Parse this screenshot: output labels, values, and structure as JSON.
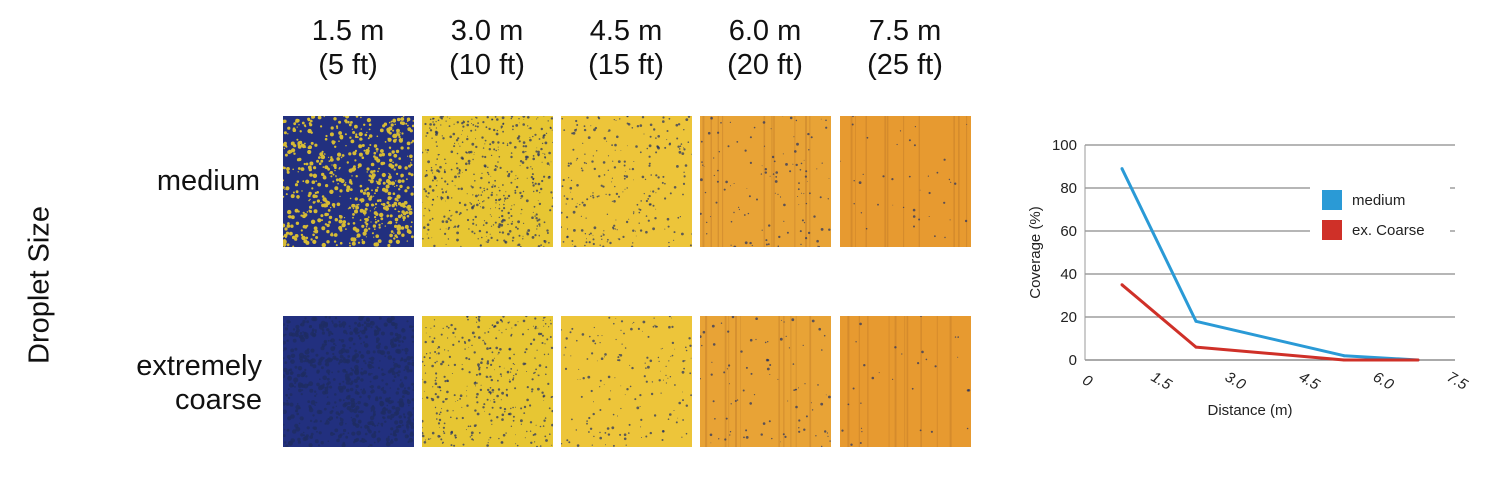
{
  "figure": {
    "y_title": "Droplet Size",
    "columns": [
      {
        "line1": "1.5 m",
        "line2": "(5 ft)"
      },
      {
        "line1": "3.0 m",
        "line2": "(10 ft)"
      },
      {
        "line1": "4.5 m",
        "line2": "(15 ft)"
      },
      {
        "line1": "6.0 m",
        "line2": "(20 ft)"
      },
      {
        "line1": "7.5 m",
        "line2": "(25 ft)"
      }
    ],
    "rows": [
      {
        "line1": "medium",
        "line2": ""
      },
      {
        "line1": "extremely",
        "line2": "coarse"
      }
    ],
    "colors": {
      "card_blue": "#1e2b7a",
      "card_yellow": "#e8c22a",
      "card_orange": "#e39a2e"
    }
  },
  "chart_data": {
    "type": "line",
    "title": "",
    "xlabel": "Distance (m)",
    "ylabel": "Coverage (%)",
    "ylim": [
      0,
      100
    ],
    "xlim": [
      0,
      7.5
    ],
    "yticks": [
      "0",
      "20",
      "40",
      "60",
      "80",
      "100"
    ],
    "xticks": [
      "0",
      "1.5",
      "3.0",
      "4.5",
      "6.0",
      "7.5"
    ],
    "grid": true,
    "legend_position": "top-right",
    "series": [
      {
        "name": "medium",
        "color": "#2a9ad6",
        "x": [
          0.75,
          2.25,
          5.25,
          6.75
        ],
        "y": [
          89,
          18,
          2,
          0
        ]
      },
      {
        "name": "ex. Coarse",
        "color": "#cf3028",
        "x": [
          0.75,
          2.25,
          5.25,
          6.75
        ],
        "y": [
          35,
          6,
          0,
          0
        ]
      }
    ]
  }
}
